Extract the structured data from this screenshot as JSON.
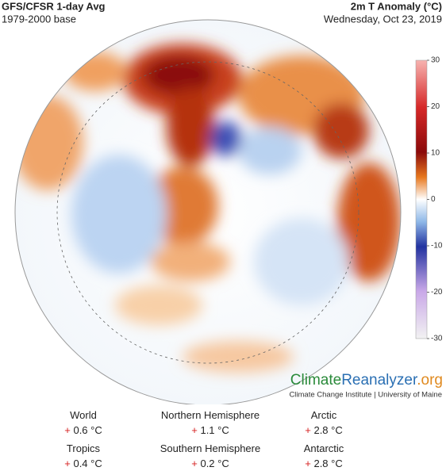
{
  "header": {
    "title": "GFS/CFSR 1-day Avg",
    "base": "1979-2000 base",
    "variable": "2m T Anomaly (°C)",
    "date": "Wednesday, Oct 23, 2019"
  },
  "colorbar": {
    "lim": [
      -30,
      30
    ],
    "ticks": [
      30,
      20,
      10,
      0,
      -10,
      -20,
      -30
    ]
  },
  "logo": {
    "climate": "Climate",
    "reanalyzer": "Reanalyzer",
    "org": ".org",
    "credit": "Climate Change Institute | University of Maine"
  },
  "stats": [
    {
      "label": "World",
      "sign": "+",
      "value": "0.6 °C"
    },
    {
      "label": "Northern Hemisphere",
      "sign": "+",
      "value": "1.1 °C"
    },
    {
      "label": "Arctic",
      "sign": "+",
      "value": "2.8 °C"
    },
    {
      "label": "Tropics",
      "sign": "+",
      "value": "0.4 °C"
    },
    {
      "label": "Southern Hemisphere",
      "sign": "+",
      "value": "0.2 °C"
    },
    {
      "label": "Antarctic",
      "sign": "+",
      "value": "2.8 °C"
    }
  ]
}
